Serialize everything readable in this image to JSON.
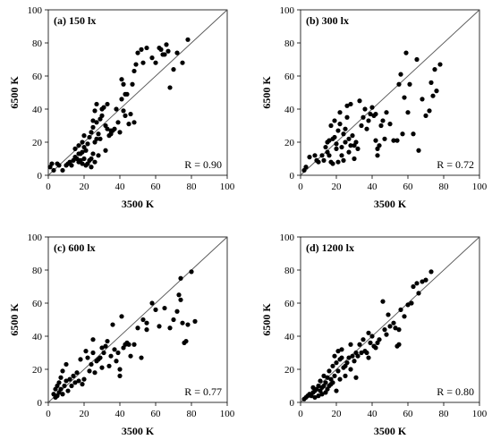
{
  "chart_data": [
    {
      "type": "scatter",
      "title": "(a) 150 lx",
      "xlabel": "3500 K",
      "ylabel": "6500 K",
      "xlim": [
        0,
        100
      ],
      "ylim": [
        0,
        100
      ],
      "xticks": [
        "0",
        "20",
        "40",
        "60",
        "80",
        "100"
      ],
      "yticks": [
        "0",
        "20",
        "40",
        "60",
        "80",
        "100"
      ],
      "annotation": "R = 0.90",
      "reference_line": "y = x",
      "points": [
        [
          1,
          5
        ],
        [
          2,
          7
        ],
        [
          3,
          3
        ],
        [
          5,
          7
        ],
        [
          6,
          6
        ],
        [
          8,
          3
        ],
        [
          10,
          6
        ],
        [
          11,
          7
        ],
        [
          12,
          8
        ],
        [
          13,
          6
        ],
        [
          14,
          9
        ],
        [
          15,
          11
        ],
        [
          15,
          16
        ],
        [
          16,
          10
        ],
        [
          17,
          8
        ],
        [
          17,
          18
        ],
        [
          17,
          13
        ],
        [
          18,
          13
        ],
        [
          18,
          9
        ],
        [
          19,
          14
        ],
        [
          19,
          20
        ],
        [
          19,
          7
        ],
        [
          20,
          24
        ],
        [
          20,
          17
        ],
        [
          20,
          10
        ],
        [
          21,
          15
        ],
        [
          21,
          6
        ],
        [
          22,
          19
        ],
        [
          22,
          7
        ],
        [
          23,
          23
        ],
        [
          23,
          9
        ],
        [
          24,
          26
        ],
        [
          24,
          10
        ],
        [
          24,
          5
        ],
        [
          25,
          29
        ],
        [
          25,
          33
        ],
        [
          25,
          13
        ],
        [
          26,
          39
        ],
        [
          26,
          8
        ],
        [
          26,
          20
        ],
        [
          27,
          43
        ],
        [
          27,
          32
        ],
        [
          27,
          22
        ],
        [
          28,
          12
        ],
        [
          28,
          25
        ],
        [
          29,
          34
        ],
        [
          29,
          22
        ],
        [
          30,
          36
        ],
        [
          30,
          40
        ],
        [
          31,
          41
        ],
        [
          32,
          30
        ],
        [
          32,
          15
        ],
        [
          33,
          43
        ],
        [
          33,
          28
        ],
        [
          34,
          24
        ],
        [
          35,
          25
        ],
        [
          35,
          27
        ],
        [
          36,
          27
        ],
        [
          37,
          28
        ],
        [
          38,
          40
        ],
        [
          39,
          32
        ],
        [
          40,
          26
        ],
        [
          41,
          58
        ],
        [
          41,
          46
        ],
        [
          42,
          55
        ],
        [
          42,
          39
        ],
        [
          43,
          49
        ],
        [
          43,
          36
        ],
        [
          44,
          49
        ],
        [
          45,
          31
        ],
        [
          46,
          37
        ],
        [
          47,
          55
        ],
        [
          48,
          63
        ],
        [
          48,
          32
        ],
        [
          49,
          67
        ],
        [
          50,
          74
        ],
        [
          52,
          76
        ],
        [
          53,
          68
        ],
        [
          55,
          77
        ],
        [
          58,
          71
        ],
        [
          60,
          68
        ],
        [
          62,
          77
        ],
        [
          63,
          76
        ],
        [
          64,
          73
        ],
        [
          65,
          73
        ],
        [
          66,
          79
        ],
        [
          67,
          75
        ],
        [
          68,
          53
        ],
        [
          70,
          64
        ],
        [
          72,
          74
        ],
        [
          75,
          68
        ],
        [
          78,
          82
        ]
      ]
    },
    {
      "type": "scatter",
      "title": "(b) 300 lx",
      "xlabel": "3500 K",
      "ylabel": "6500 K",
      "xlim": [
        0,
        100
      ],
      "ylim": [
        0,
        100
      ],
      "xticks": [
        "0",
        "20",
        "40",
        "60",
        "80",
        "100"
      ],
      "yticks": [
        "0",
        "20",
        "40",
        "60",
        "80",
        "100"
      ],
      "annotation": "R = 0.72",
      "reference_line": "y = x",
      "points": [
        [
          2,
          3
        ],
        [
          3,
          5
        ],
        [
          5,
          11
        ],
        [
          8,
          12
        ],
        [
          9,
          9
        ],
        [
          10,
          8
        ],
        [
          12,
          12
        ],
        [
          13,
          9
        ],
        [
          14,
          17
        ],
        [
          15,
          14
        ],
        [
          15,
          20
        ],
        [
          16,
          21
        ],
        [
          16,
          12
        ],
        [
          17,
          8
        ],
        [
          17,
          30
        ],
        [
          18,
          22
        ],
        [
          18,
          7
        ],
        [
          19,
          23
        ],
        [
          19,
          33
        ],
        [
          20,
          16
        ],
        [
          20,
          19
        ],
        [
          21,
          8
        ],
        [
          21,
          27
        ],
        [
          22,
          31
        ],
        [
          22,
          38
        ],
        [
          23,
          12
        ],
        [
          23,
          17
        ],
        [
          24,
          25
        ],
        [
          24,
          9
        ],
        [
          25,
          28
        ],
        [
          25,
          20
        ],
        [
          26,
          35
        ],
        [
          26,
          42
        ],
        [
          27,
          14
        ],
        [
          27,
          22
        ],
        [
          28,
          43
        ],
        [
          28,
          18
        ],
        [
          29,
          24
        ],
        [
          30,
          10
        ],
        [
          30,
          18
        ],
        [
          31,
          20
        ],
        [
          32,
          16
        ],
        [
          33,
          45
        ],
        [
          34,
          30
        ],
        [
          35,
          35
        ],
        [
          36,
          40
        ],
        [
          37,
          28
        ],
        [
          38,
          33
        ],
        [
          39,
          37
        ],
        [
          40,
          41
        ],
        [
          41,
          36
        ],
        [
          42,
          37
        ],
        [
          42,
          21
        ],
        [
          43,
          12
        ],
        [
          43,
          16
        ],
        [
          44,
          18
        ],
        [
          45,
          30
        ],
        [
          46,
          33
        ],
        [
          47,
          22
        ],
        [
          48,
          38
        ],
        [
          50,
          31
        ],
        [
          52,
          21
        ],
        [
          54,
          21
        ],
        [
          55,
          55
        ],
        [
          56,
          61
        ],
        [
          57,
          25
        ],
        [
          58,
          47
        ],
        [
          59,
          74
        ],
        [
          60,
          38
        ],
        [
          61,
          55
        ],
        [
          63,
          25
        ],
        [
          65,
          70
        ],
        [
          66,
          15
        ],
        [
          68,
          46
        ],
        [
          70,
          36
        ],
        [
          72,
          39
        ],
        [
          73,
          56
        ],
        [
          74,
          48
        ],
        [
          75,
          64
        ],
        [
          76,
          51
        ],
        [
          78,
          67
        ]
      ]
    },
    {
      "type": "scatter",
      "title": "(c) 600 lx",
      "xlabel": "3500 K",
      "ylabel": "6500 K",
      "xlim": [
        0,
        100
      ],
      "ylim": [
        0,
        100
      ],
      "xticks": [
        "0",
        "20",
        "40",
        "60",
        "80",
        "100"
      ],
      "yticks": [
        "0",
        "20",
        "40",
        "60",
        "80",
        "100"
      ],
      "annotation": "R = 0.77",
      "reference_line": "y = x",
      "points": [
        [
          3,
          5
        ],
        [
          4,
          3
        ],
        [
          4,
          8
        ],
        [
          5,
          4
        ],
        [
          5,
          10
        ],
        [
          6,
          6
        ],
        [
          6,
          12
        ],
        [
          7,
          8
        ],
        [
          7,
          15
        ],
        [
          8,
          5
        ],
        [
          8,
          19
        ],
        [
          9,
          10
        ],
        [
          10,
          13
        ],
        [
          10,
          23
        ],
        [
          11,
          7
        ],
        [
          12,
          14
        ],
        [
          13,
          10
        ],
        [
          14,
          16
        ],
        [
          15,
          12
        ],
        [
          16,
          18
        ],
        [
          17,
          13
        ],
        [
          18,
          26
        ],
        [
          19,
          11
        ],
        [
          20,
          14
        ],
        [
          21,
          31
        ],
        [
          22,
          27
        ],
        [
          23,
          19
        ],
        [
          24,
          23
        ],
        [
          25,
          30
        ],
        [
          25,
          38
        ],
        [
          26,
          18
        ],
        [
          27,
          25
        ],
        [
          28,
          26
        ],
        [
          29,
          27
        ],
        [
          30,
          21
        ],
        [
          30,
          33
        ],
        [
          31,
          30
        ],
        [
          32,
          34
        ],
        [
          33,
          37
        ],
        [
          34,
          22
        ],
        [
          35,
          28
        ],
        [
          36,
          47
        ],
        [
          37,
          32
        ],
        [
          38,
          25
        ],
        [
          39,
          30
        ],
        [
          40,
          20
        ],
        [
          40,
          16
        ],
        [
          41,
          52
        ],
        [
          42,
          33
        ],
        [
          43,
          35
        ],
        [
          44,
          36
        ],
        [
          45,
          35
        ],
        [
          46,
          28
        ],
        [
          48,
          35
        ],
        [
          50,
          45
        ],
        [
          52,
          27
        ],
        [
          53,
          50
        ],
        [
          55,
          44
        ],
        [
          55,
          48
        ],
        [
          58,
          60
        ],
        [
          60,
          56
        ],
        [
          62,
          46
        ],
        [
          65,
          57
        ],
        [
          68,
          45
        ],
        [
          70,
          50
        ],
        [
          72,
          55
        ],
        [
          73,
          65
        ],
        [
          74,
          62
        ],
        [
          75,
          48
        ],
        [
          76,
          36
        ],
        [
          77,
          37
        ],
        [
          78,
          47
        ],
        [
          80,
          79
        ],
        [
          82,
          49
        ],
        [
          74,
          75
        ]
      ]
    },
    {
      "type": "scatter",
      "title": "(d) 1200 lx",
      "xlabel": "3500 K",
      "ylabel": "6500 K",
      "xlim": [
        0,
        100
      ],
      "ylim": [
        0,
        100
      ],
      "xticks": [
        "0",
        "20",
        "40",
        "60",
        "80",
        "100"
      ],
      "yticks": [
        "0",
        "20",
        "40",
        "60",
        "80",
        "100"
      ],
      "annotation": "R = 0.80",
      "reference_line": "y = x",
      "points": [
        [
          2,
          2
        ],
        [
          3,
          3
        ],
        [
          4,
          4
        ],
        [
          5,
          5
        ],
        [
          6,
          4
        ],
        [
          7,
          6
        ],
        [
          7,
          9
        ],
        [
          8,
          3
        ],
        [
          8,
          7
        ],
        [
          9,
          8
        ],
        [
          10,
          4
        ],
        [
          10,
          10
        ],
        [
          11,
          7
        ],
        [
          11,
          13
        ],
        [
          12,
          5
        ],
        [
          12,
          9
        ],
        [
          13,
          10
        ],
        [
          13,
          16
        ],
        [
          14,
          6
        ],
        [
          14,
          12
        ],
        [
          15,
          8
        ],
        [
          15,
          15
        ],
        [
          16,
          10
        ],
        [
          16,
          19
        ],
        [
          17,
          11
        ],
        [
          17,
          14
        ],
        [
          18,
          12
        ],
        [
          18,
          22
        ],
        [
          19,
          16
        ],
        [
          19,
          28
        ],
        [
          20,
          7
        ],
        [
          20,
          24
        ],
        [
          21,
          31
        ],
        [
          21,
          19
        ],
        [
          22,
          26
        ],
        [
          22,
          14
        ],
        [
          23,
          27
        ],
        [
          23,
          32
        ],
        [
          24,
          21
        ],
        [
          25,
          22
        ],
        [
          25,
          16
        ],
        [
          26,
          24
        ],
        [
          27,
          27
        ],
        [
          28,
          20
        ],
        [
          28,
          35
        ],
        [
          29,
          28
        ],
        [
          30,
          25
        ],
        [
          31,
          15
        ],
        [
          31,
          30
        ],
        [
          32,
          28
        ],
        [
          33,
          35
        ],
        [
          34,
          30
        ],
        [
          35,
          38
        ],
        [
          36,
          31
        ],
        [
          37,
          30
        ],
        [
          38,
          42
        ],
        [
          38,
          27
        ],
        [
          39,
          36
        ],
        [
          40,
          40
        ],
        [
          41,
          34
        ],
        [
          42,
          33
        ],
        [
          43,
          36
        ],
        [
          44,
          38
        ],
        [
          46,
          61
        ],
        [
          47,
          44
        ],
        [
          48,
          41
        ],
        [
          49,
          53
        ],
        [
          50,
          46
        ],
        [
          52,
          48
        ],
        [
          53,
          45
        ],
        [
          54,
          34
        ],
        [
          55,
          35
        ],
        [
          55,
          44
        ],
        [
          56,
          56
        ],
        [
          58,
          52
        ],
        [
          60,
          59
        ],
        [
          62,
          60
        ],
        [
          63,
          70
        ],
        [
          65,
          72
        ],
        [
          66,
          66
        ],
        [
          68,
          73
        ],
        [
          70,
          74
        ],
        [
          73,
          79
        ]
      ]
    }
  ]
}
